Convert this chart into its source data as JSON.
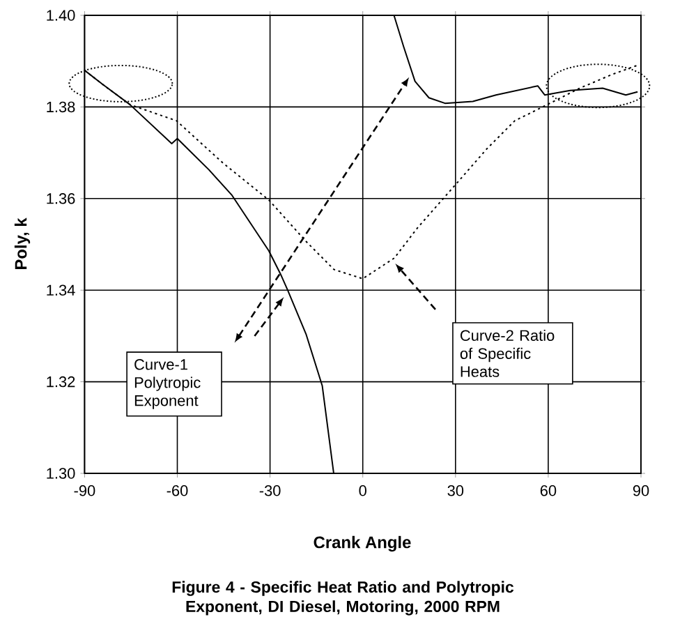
{
  "chart_data": {
    "type": "line",
    "title": "**Figure 4** - Specific Heat Ratio and Polytropic Exponent, DI Diesel, Motoring, 2000 RPM",
    "xlabel": "Crank Angle",
    "ylabel": "Poly,  k",
    "xlim": [
      -90,
      90
    ],
    "xticks": [
      -90,
      -60,
      -30,
      0,
      30,
      60,
      90
    ],
    "ylim": [
      1.3,
      1.4
    ],
    "yticks": [
      {
        "value": 1.3,
        "label": "1.30"
      },
      {
        "value": 1.32,
        "label": "1.32"
      },
      {
        "value": 1.34,
        "label": "1.34"
      },
      {
        "value": 1.36,
        "label": "1.36"
      },
      {
        "value": 1.38,
        "label": "1.38"
      },
      {
        "value": 1.4,
        "label": "1.40"
      }
    ],
    "grid": true,
    "legend": false,
    "marker": "none",
    "annotations": [
      "Curve-1 Polytropic Exponent",
      "Curve-2 Ratio of Specific Heats"
    ],
    "series": [
      {
        "color": "#000000",
        "line_style": "solid",
        "x": [
          -90,
          -84.3,
          -75.3,
          -61.8,
          -60,
          -49.8,
          -42.3,
          -30.4,
          -26.6,
          -24.3,
          -18.3,
          -13.1,
          -9.4,
          null,
          10.1,
          13.2,
          16.9,
          21.4,
          26.6,
          35.6,
          43.1,
          56.6,
          58.9,
          67.1,
          77.6,
          85.1,
          88.9
        ],
        "values": [
          1.388,
          1.385,
          1.3805,
          1.372,
          1.3731,
          1.3663,
          1.3607,
          1.3486,
          1.3435,
          1.34,
          1.3303,
          1.3191,
          1.3,
          null,
          1.4,
          1.3932,
          1.3856,
          1.382,
          1.3808,
          1.3812,
          1.3826,
          1.3846,
          1.3826,
          1.3836,
          1.3841,
          1.3826,
          1.3833
        ]
      },
      {
        "color": "#000000",
        "line_style": "dotted",
        "x": [
          -90,
          -84.3,
          -75.3,
          -60.3,
          -45.3,
          -30.4,
          -18.3,
          -9.3,
          0,
          10.2,
          17.7,
          29.7,
          40.2,
          49.2,
          58.2,
          70.2,
          80.7,
          88.9
        ],
        "values": [
          1.388,
          1.385,
          1.3805,
          1.377,
          1.3678,
          1.3597,
          1.3506,
          1.3445,
          1.3425,
          1.347,
          1.3536,
          1.3628,
          1.3709,
          1.377,
          1.38,
          1.3841,
          1.3871,
          1.3891
        ]
      }
    ]
  }
}
